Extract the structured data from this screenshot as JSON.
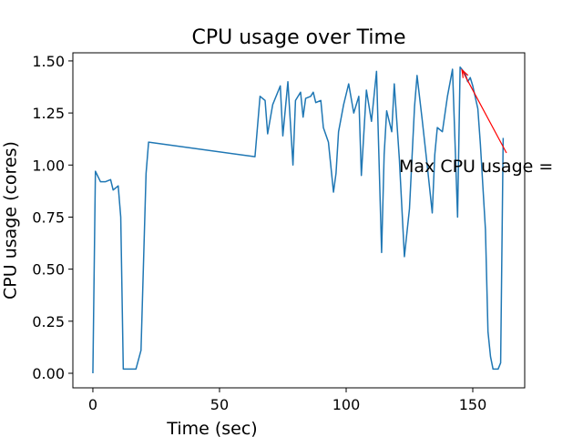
{
  "chart_data": {
    "type": "line",
    "title": "CPU usage over Time",
    "x_label": "Time (sec)",
    "y_label": "CPU usage (cores)",
    "x": [
      0,
      1,
      3,
      5,
      7,
      8,
      10,
      11,
      12,
      14,
      17,
      19,
      21,
      22,
      64,
      66,
      68,
      69,
      71,
      74,
      75,
      77,
      79,
      80,
      82,
      83,
      84,
      86,
      87,
      88,
      90,
      91,
      93,
      95,
      96,
      97,
      99,
      101,
      103,
      105,
      106,
      108,
      110,
      112,
      114,
      115,
      116,
      118,
      119,
      121,
      123,
      125,
      127,
      128,
      130,
      132,
      134,
      135,
      136,
      138,
      140,
      142,
      144,
      145,
      147,
      148,
      149,
      150,
      152,
      153,
      155,
      156,
      157,
      158,
      160,
      161,
      162
    ],
    "series": [
      {
        "name": "CPU usage",
        "color": "#1f77b4",
        "values": [
          0,
          0.97,
          0.92,
          0.92,
          0.93,
          0.88,
          0.9,
          0.75,
          0.02,
          0.02,
          0.02,
          0.11,
          0.96,
          1.11,
          1.04,
          1.33,
          1.31,
          1.15,
          1.29,
          1.38,
          1.14,
          1.4,
          1.0,
          1.31,
          1.35,
          1.23,
          1.32,
          1.33,
          1.35,
          1.3,
          1.31,
          1.18,
          1.11,
          0.87,
          0.96,
          1.16,
          1.29,
          1.39,
          1.25,
          1.33,
          0.95,
          1.36,
          1.21,
          1.45,
          0.58,
          1.05,
          1.26,
          1.16,
          1.39,
          1.03,
          0.56,
          0.79,
          1.28,
          1.43,
          1.22,
          1.0,
          0.77,
          1.05,
          1.18,
          1.16,
          1.33,
          1.46,
          0.75,
          1.47,
          1.44,
          1.4,
          1.42,
          1.38,
          1.27,
          1.1,
          0.69,
          0.2,
          0.08,
          0.02,
          0.02,
          0.05,
          1.13
        ]
      }
    ],
    "xlim": [
      -7.9,
      170.5
    ],
    "ylim": [
      -0.07,
      1.539
    ],
    "xticks": [
      0,
      50,
      100,
      150
    ],
    "yticks": [
      {
        "value": 0,
        "label": "0.00"
      },
      {
        "value": 0.25,
        "label": "0.25"
      },
      {
        "value": 0.5,
        "label": "0.50"
      },
      {
        "value": 0.75,
        "label": "0.75"
      },
      {
        "value": 1,
        "label": "1.00"
      },
      {
        "value": 1.25,
        "label": "1.25"
      },
      {
        "value": 1.5,
        "label": "1.50"
      }
    ],
    "annotation": {
      "text": "Max CPU usage =",
      "color": "#ff0000"
    }
  }
}
